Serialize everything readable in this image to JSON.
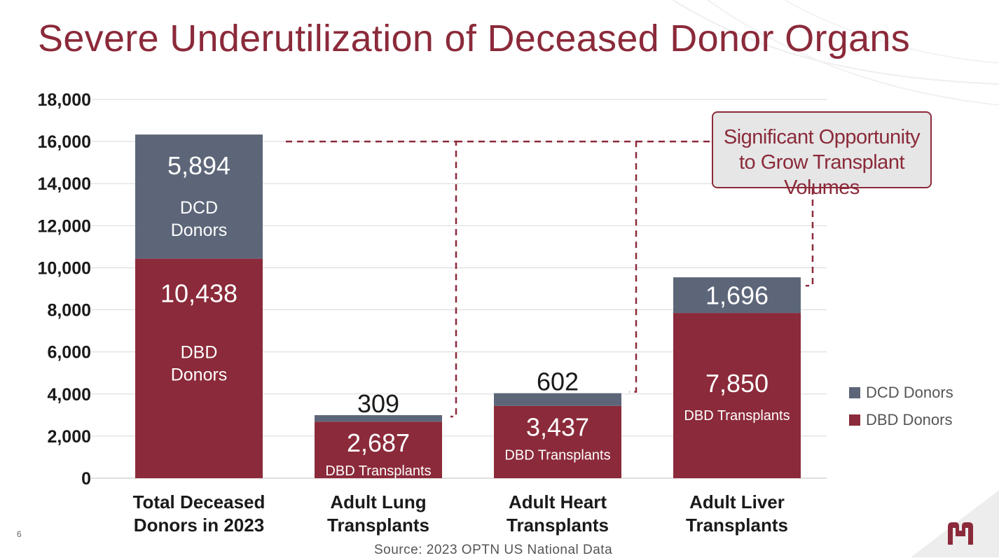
{
  "slide": {
    "title": "Severe Underutilization of Deceased Donor Organs",
    "slide_number": "6",
    "source": "Source: 2023 OPTN US National Data",
    "callout": "Significant Opportunity to Grow Transplant Volumes",
    "logo_icon": "hospital-logo-icon"
  },
  "colors": {
    "accent": "#8b2a3a",
    "dbd": "#8b2a3a",
    "dcd": "#5d6679",
    "grid": "#d9d9d9",
    "dashed_line": "#8b2a3a"
  },
  "chart_data": {
    "type": "bar",
    "stacked": true,
    "title": "",
    "xlabel": "",
    "ylabel": "",
    "ylim": [
      0,
      18000
    ],
    "yticks": [
      0,
      2000,
      4000,
      6000,
      8000,
      10000,
      12000,
      14000,
      16000,
      18000
    ],
    "ytick_labels": [
      "0",
      "2,000",
      "4,000",
      "6,000",
      "8,000",
      "10,000",
      "12,000",
      "14,000",
      "16,000",
      "18,000"
    ],
    "grid": true,
    "legend_position": "right",
    "categories": [
      [
        "Total Deceased",
        "Donors in 2023"
      ],
      [
        "Adult Lung",
        "Transplants"
      ],
      [
        "Adult Heart",
        "Transplants"
      ],
      [
        "Adult Liver",
        "Transplants"
      ]
    ],
    "series": [
      {
        "name": "DBD Donors",
        "color": "#8b2a3a",
        "values": [
          10438,
          2687,
          3437,
          7850
        ],
        "value_labels": [
          "10,438",
          "2,687",
          "3,437",
          "7,850"
        ],
        "sub_labels": [
          [
            "DBD",
            "Donors"
          ],
          [
            "DBD Transplants"
          ],
          [
            "DBD Transplants"
          ],
          [
            "DBD Transplants"
          ]
        ]
      },
      {
        "name": "DCD Donors",
        "color": "#5d6679",
        "values": [
          5894,
          309,
          602,
          1696
        ],
        "value_labels": [
          "5,894",
          "309",
          "602",
          "1,696"
        ],
        "sub_labels": [
          [
            "DCD",
            "Donors"
          ],
          [],
          [],
          []
        ]
      }
    ]
  }
}
